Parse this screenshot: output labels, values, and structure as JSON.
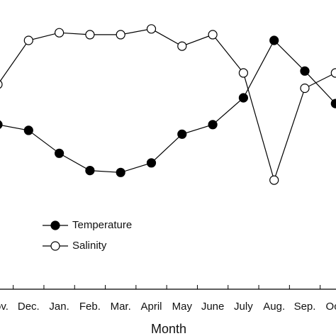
{
  "chart_data": {
    "type": "line",
    "x_label": "Month",
    "categories": [
      "Nov.",
      "Dec.",
      "Jan.",
      "Feb.",
      "Mar.",
      "April",
      "May",
      "June",
      "July",
      "Aug.",
      "Sep.",
      "Oct."
    ],
    "series": [
      {
        "name": "Temperature",
        "color": "#000000",
        "marker": "filled",
        "values": [
          46,
          43,
          31,
          22,
          21,
          26,
          41,
          46,
          60,
          90,
          74,
          57
        ]
      },
      {
        "name": "Salinity",
        "color": "#000000",
        "marker": "open",
        "values": [
          67,
          90,
          94,
          93,
          93,
          96,
          87,
          93,
          73,
          17,
          65,
          73
        ]
      }
    ],
    "ylim": [
      0,
      100
    ],
    "legend": "lower-left"
  }
}
